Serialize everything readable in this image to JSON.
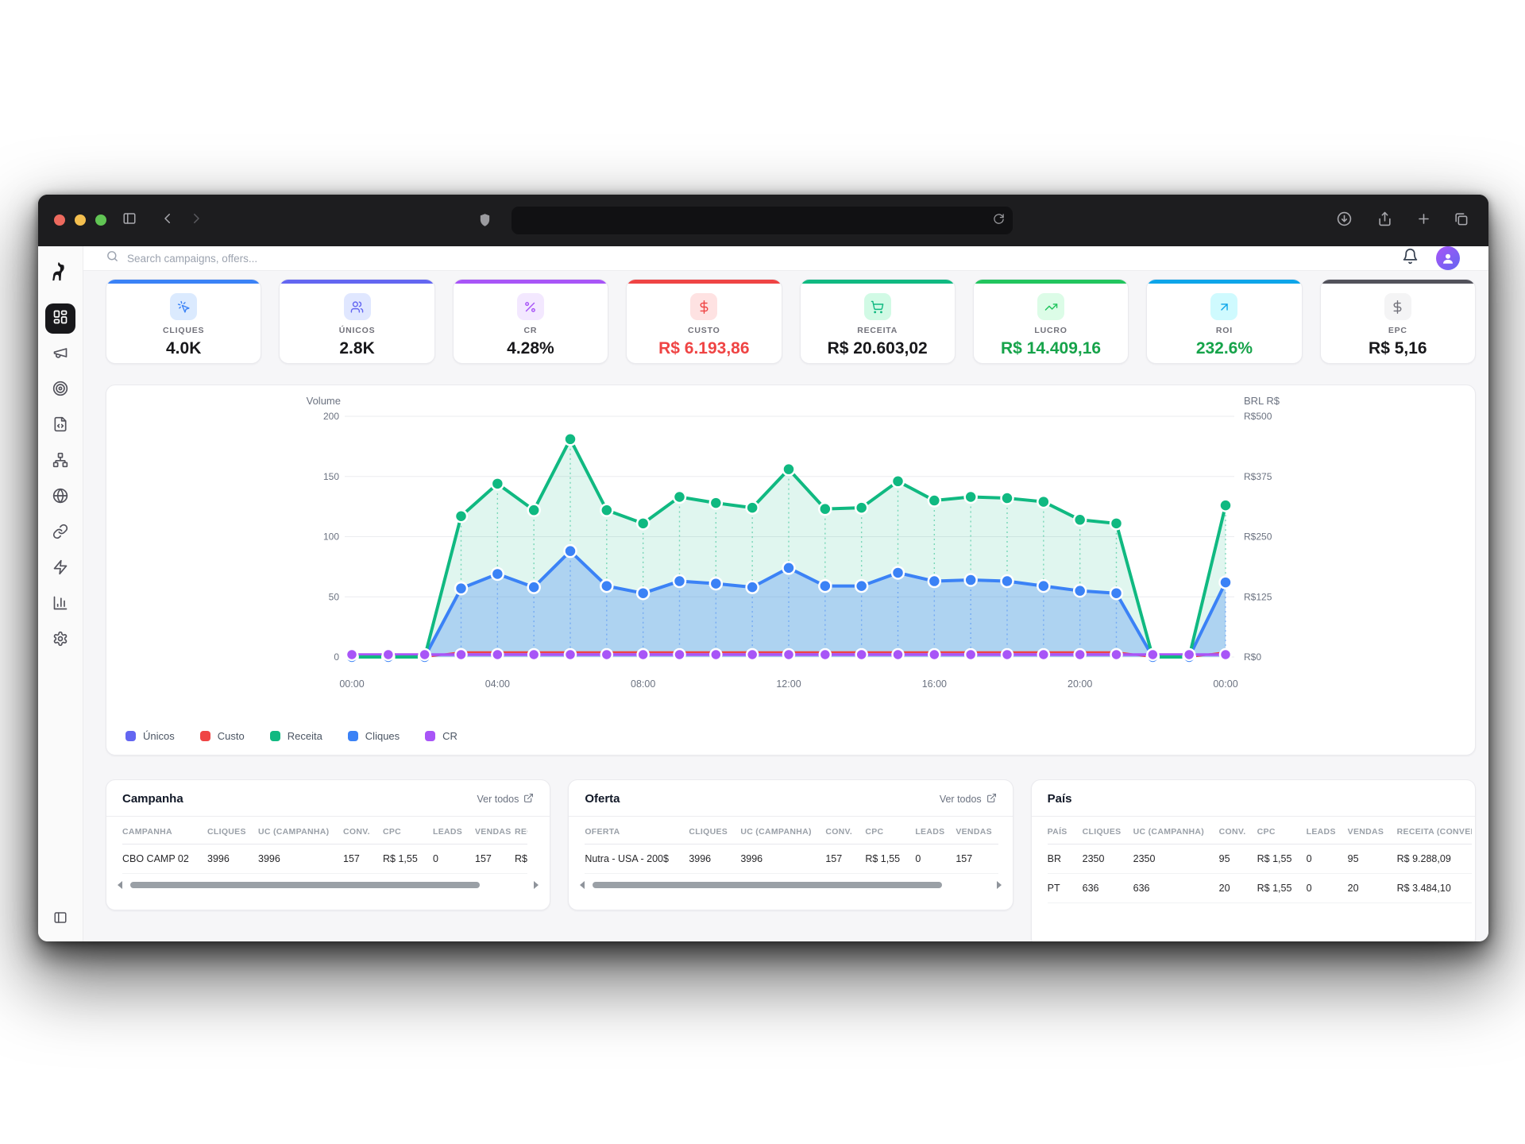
{
  "browser": {
    "traffic_lights": [
      "#ed6a5e",
      "#f4bf4f",
      "#61c554"
    ],
    "url_value": "",
    "icons": {
      "panel": "panel-left",
      "back": "chevron-left",
      "forward": "chevron-right",
      "shield": "shield",
      "refresh": "refresh",
      "download": "download-circle",
      "share": "share",
      "new_tab": "plus",
      "tabs": "tabs"
    }
  },
  "header": {
    "search_placeholder": "Search campaigns, offers...",
    "icons": {
      "search": "search",
      "bell": "bell",
      "avatar": "user"
    }
  },
  "sidebar": {
    "logo_icon": "dog-logo",
    "items": [
      {
        "icon": "layout-dashboard",
        "active": true
      },
      {
        "icon": "megaphone",
        "active": false
      },
      {
        "icon": "target",
        "active": false
      },
      {
        "icon": "file-code",
        "active": false
      },
      {
        "icon": "network",
        "active": false
      },
      {
        "icon": "globe",
        "active": false
      },
      {
        "icon": "link",
        "active": false
      },
      {
        "icon": "zap",
        "active": false
      },
      {
        "icon": "bar-chart",
        "active": false
      },
      {
        "icon": "settings",
        "active": false
      }
    ],
    "bottom_icon": "panel-left"
  },
  "kpi_cards": [
    {
      "label": "CLIQUES",
      "value": "4.0K",
      "accent": "#3b82f6",
      "badge_bg": "#dbeafe",
      "icon_color": "#3b82f6",
      "value_color": "#18181b",
      "icon": "cursor-click"
    },
    {
      "label": "ÚNICOS",
      "value": "2.8K",
      "accent": "#6366f1",
      "badge_bg": "#e0e7ff",
      "icon_color": "#6366f1",
      "value_color": "#18181b",
      "icon": "users"
    },
    {
      "label": "CR",
      "value": "4.28%",
      "accent": "#a855f7",
      "badge_bg": "#f3e8ff",
      "icon_color": "#a855f7",
      "value_color": "#18181b",
      "icon": "percent"
    },
    {
      "label": "CUSTO",
      "value": "R$ 6.193,86",
      "accent": "#ef4444",
      "badge_bg": "#fee2e2",
      "icon_color": "#ef4444",
      "value_color": "#ef4444",
      "icon": "dollar"
    },
    {
      "label": "RECEITA",
      "value": "R$ 20.603,02",
      "accent": "#10b981",
      "badge_bg": "#d1fae5",
      "icon_color": "#10b981",
      "value_color": "#18181b",
      "icon": "cart"
    },
    {
      "label": "LUCRO",
      "value": "R$ 14.409,16",
      "accent": "#22c55e",
      "badge_bg": "#dcfce7",
      "icon_color": "#22c55e",
      "value_color": "#16a34a",
      "icon": "trend-up"
    },
    {
      "label": "ROI",
      "value": "232.6%",
      "accent": "#0ea5e9",
      "badge_bg": "#cffafe",
      "icon_color": "#0ea5e9",
      "value_color": "#16a34a",
      "icon": "arrow-up-right"
    },
    {
      "label": "EPC",
      "value": "R$ 5,16",
      "accent": "#52525b",
      "badge_bg": "#f4f4f5",
      "icon_color": "#71717a",
      "value_color": "#18181b",
      "icon": "dollar"
    }
  ],
  "chart": {
    "chart_data": {
      "type": "area-line",
      "x": [
        "00:00",
        "01:00",
        "02:00",
        "03:00",
        "04:00",
        "05:00",
        "06:00",
        "07:00",
        "08:00",
        "09:00",
        "10:00",
        "11:00",
        "12:00",
        "13:00",
        "14:00",
        "15:00",
        "16:00",
        "17:00",
        "18:00",
        "19:00",
        "20:00",
        "21:00",
        "22:00",
        "23:00",
        "00:00"
      ],
      "x_tick_labels": [
        "00:00",
        "04:00",
        "08:00",
        "12:00",
        "16:00",
        "20:00",
        "00:00"
      ],
      "y_left": {
        "label": "Volume",
        "ticks": [
          200,
          150,
          100,
          50,
          0
        ],
        "range": [
          0,
          200
        ]
      },
      "y_right": {
        "label": "BRL R$",
        "ticks": [
          "R$500",
          "R$375",
          "R$250",
          "R$125",
          "R$0"
        ],
        "tick_values": [
          500,
          375,
          250,
          125,
          0
        ],
        "range": [
          0,
          500
        ]
      },
      "grid": true,
      "legend_position": "bottom",
      "series": [
        {
          "name": "Únicos",
          "color": "#6366f1",
          "values": [
            0,
            0,
            0,
            57,
            69,
            58,
            88,
            59,
            53,
            63,
            61,
            58,
            74,
            59,
            59,
            70,
            63,
            64,
            63,
            59,
            55,
            53,
            0,
            0,
            62
          ],
          "note": "overlaps Cliques line"
        },
        {
          "name": "Custo",
          "color": "#ef4444",
          "values": [
            0,
            0,
            0,
            4,
            4,
            4,
            4,
            4,
            4,
            4,
            4,
            4,
            4,
            4,
            4,
            4,
            4,
            4,
            4,
            4,
            4,
            4,
            0,
            0,
            4
          ]
        },
        {
          "name": "Receita",
          "color": "#10b981",
          "fill": "rgba(16,185,129,0.13)",
          "values": [
            0,
            0,
            0,
            117,
            144,
            122,
            181,
            122,
            111,
            133,
            128,
            124,
            156,
            123,
            124,
            146,
            130,
            133,
            132,
            129,
            114,
            111,
            0,
            0,
            126
          ]
        },
        {
          "name": "Cliques",
          "color": "#3b82f6",
          "fill": "rgba(59,130,246,0.30)",
          "values": [
            0,
            0,
            0,
            57,
            69,
            58,
            88,
            59,
            53,
            63,
            61,
            58,
            74,
            59,
            59,
            70,
            63,
            64,
            63,
            59,
            55,
            53,
            0,
            0,
            62
          ]
        },
        {
          "name": "CR",
          "color": "#a855f7",
          "values": [
            2,
            2,
            2,
            2,
            2,
            2,
            2,
            2,
            2,
            2,
            2,
            2,
            2,
            2,
            2,
            2,
            2,
            2,
            2,
            2,
            2,
            2,
            2,
            2,
            2
          ]
        }
      ]
    },
    "legend": [
      {
        "label": "Únicos",
        "color": "#6366f1"
      },
      {
        "label": "Custo",
        "color": "#ef4444"
      },
      {
        "label": "Receita",
        "color": "#10b981"
      },
      {
        "label": "Cliques",
        "color": "#3b82f6"
      },
      {
        "label": "CR",
        "color": "#a855f7"
      }
    ]
  },
  "tables": [
    {
      "title": "Campanha",
      "link_label": "Ver todos",
      "columns": [
        "CAMPANHA",
        "CLIQUES",
        "UC (CAMPANHA)",
        "CONV.",
        "CPC",
        "LEADS",
        "VENDAS",
        "RECEITA"
      ],
      "rows": [
        [
          "CBO CAMP 02",
          "3996",
          "3996",
          "157",
          "R$ 1,55",
          "0",
          "157",
          "R$"
        ]
      ]
    },
    {
      "title": "Oferta",
      "link_label": "Ver todos",
      "columns": [
        "OFERTA",
        "CLIQUES",
        "UC (CAMPANHA)",
        "CONV.",
        "CPC",
        "LEADS",
        "VENDAS"
      ],
      "rows": [
        [
          "Nutra - USA - 200$",
          "3996",
          "3996",
          "157",
          "R$ 1,55",
          "0",
          "157"
        ]
      ]
    },
    {
      "title": "País",
      "columns": [
        "PAÍS",
        "CLIQUES",
        "UC (CAMPANHA)",
        "CONV.",
        "CPC",
        "LEADS",
        "VENDAS",
        "RECEITA (CONVERSÃO)"
      ],
      "rows": [
        [
          "BR",
          "2350",
          "2350",
          "95",
          "R$ 1,55",
          "0",
          "95",
          "R$ 9.288,09"
        ],
        [
          "PT",
          "636",
          "636",
          "20",
          "R$ 1,55",
          "0",
          "20",
          "R$ 3.484,10"
        ]
      ]
    }
  ]
}
